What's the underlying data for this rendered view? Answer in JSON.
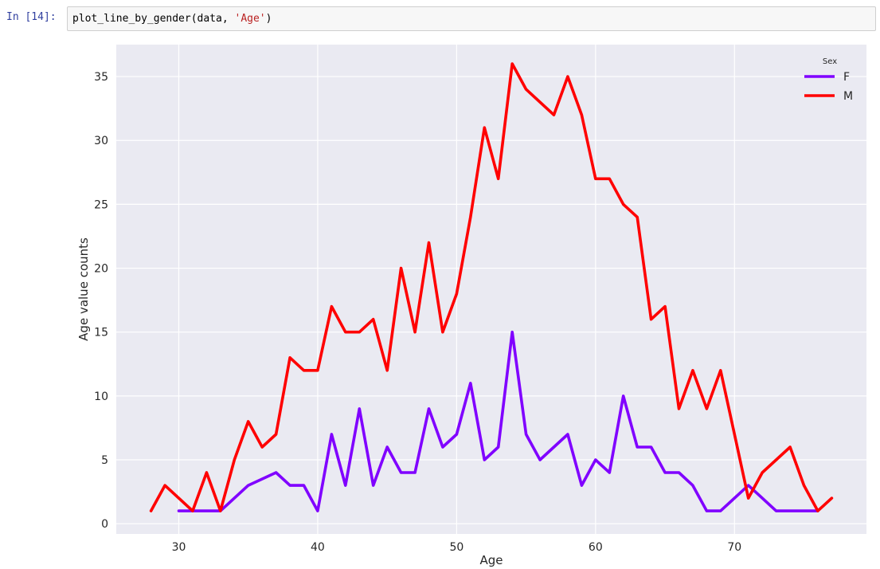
{
  "cell": {
    "prompt": "In [14]:",
    "code_call": "plot_line_by_gender(data, ",
    "code_arg": "'Age'",
    "code_close": ")"
  },
  "chart_data": {
    "type": "line",
    "title": "",
    "xlabel": "Age",
    "ylabel": "Age value counts",
    "xlim": [
      25.5,
      79.5
    ],
    "ylim": [
      -0.8,
      37.5
    ],
    "xticks": [
      30,
      40,
      50,
      60,
      70
    ],
    "yticks": [
      0,
      5,
      10,
      15,
      20,
      25,
      30,
      35
    ],
    "grid": true,
    "background": "#eaeaf2",
    "legend": {
      "title": "Sex",
      "position": "top-right"
    },
    "series": [
      {
        "name": "F",
        "color": "#8000ff",
        "points": [
          [
            30,
            1
          ],
          [
            31,
            1
          ],
          [
            32,
            1
          ],
          [
            33,
            1
          ],
          [
            35,
            3
          ],
          [
            37,
            4
          ],
          [
            38,
            3
          ],
          [
            39,
            3
          ],
          [
            40,
            1
          ],
          [
            41,
            7
          ],
          [
            42,
            3
          ],
          [
            43,
            9
          ],
          [
            44,
            3
          ],
          [
            45,
            6
          ],
          [
            46,
            4
          ],
          [
            47,
            4
          ],
          [
            48,
            9
          ],
          [
            49,
            6
          ],
          [
            50,
            7
          ],
          [
            51,
            11
          ],
          [
            52,
            5
          ],
          [
            53,
            6
          ],
          [
            54,
            15
          ],
          [
            55,
            7
          ],
          [
            56,
            5
          ],
          [
            58,
            7
          ],
          [
            59,
            3
          ],
          [
            60,
            5
          ],
          [
            61,
            4
          ],
          [
            62,
            10
          ],
          [
            63,
            6
          ],
          [
            64,
            6
          ],
          [
            65,
            4
          ],
          [
            66,
            4
          ],
          [
            67,
            3
          ],
          [
            68,
            1
          ],
          [
            69,
            1
          ],
          [
            71,
            3
          ],
          [
            72,
            2
          ],
          [
            73,
            1
          ],
          [
            74,
            1
          ],
          [
            76,
            1
          ]
        ]
      },
      {
        "name": "M",
        "color": "#ff0000",
        "points": [
          [
            28,
            1
          ],
          [
            29,
            3
          ],
          [
            31,
            1
          ],
          [
            32,
            4
          ],
          [
            33,
            1
          ],
          [
            34,
            5
          ],
          [
            35,
            8
          ],
          [
            36,
            6
          ],
          [
            37,
            7
          ],
          [
            38,
            13
          ],
          [
            39,
            12
          ],
          [
            40,
            12
          ],
          [
            41,
            17
          ],
          [
            42,
            15
          ],
          [
            43,
            15
          ],
          [
            44,
            16
          ],
          [
            45,
            12
          ],
          [
            46,
            20
          ],
          [
            47,
            15
          ],
          [
            48,
            22
          ],
          [
            49,
            15
          ],
          [
            50,
            18
          ],
          [
            51,
            24
          ],
          [
            52,
            31
          ],
          [
            53,
            27
          ],
          [
            54,
            36
          ],
          [
            55,
            34
          ],
          [
            57,
            32
          ],
          [
            58,
            35
          ],
          [
            59,
            32
          ],
          [
            60,
            27
          ],
          [
            61,
            27
          ],
          [
            62,
            25
          ],
          [
            63,
            24
          ],
          [
            64,
            16
          ],
          [
            65,
            17
          ],
          [
            66,
            9
          ],
          [
            67,
            12
          ],
          [
            68,
            9
          ],
          [
            69,
            12
          ],
          [
            70,
            7
          ],
          [
            71,
            2
          ],
          [
            72,
            4
          ],
          [
            74,
            6
          ],
          [
            75,
            3
          ],
          [
            76,
            1
          ],
          [
            77,
            2
          ]
        ]
      }
    ]
  }
}
